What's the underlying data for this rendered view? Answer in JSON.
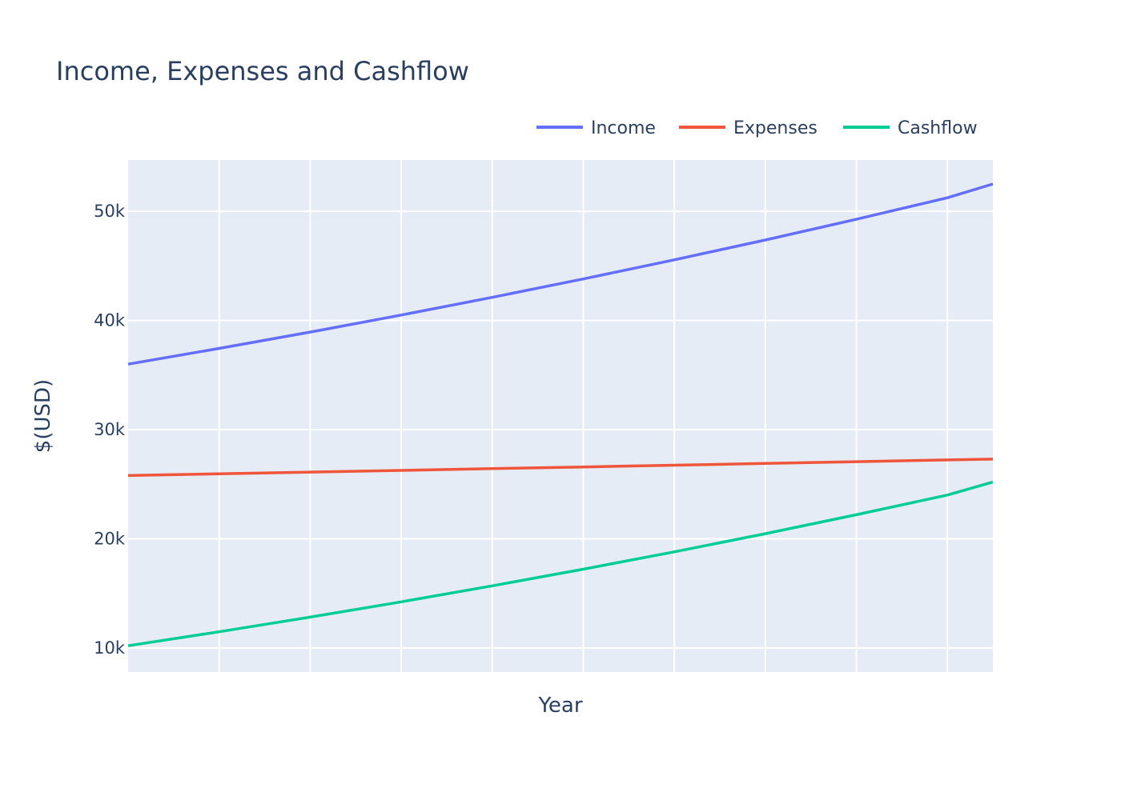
{
  "chart_data": {
    "type": "line",
    "title": "Income, Expenses and Cashflow",
    "xlabel": "Year",
    "ylabel": "$(USD)",
    "x": [
      0,
      1,
      2,
      3,
      4,
      5,
      6,
      7,
      8,
      9
    ],
    "xlim": [
      0,
      9.5
    ],
    "ylim": [
      7800,
      54700
    ],
    "y_ticks": [
      10000,
      20000,
      30000,
      40000,
      50000
    ],
    "y_tick_labels": [
      "10k",
      "20k",
      "30k",
      "40k",
      "50k"
    ],
    "x_gridlines": [
      1,
      2,
      3,
      4,
      5,
      6,
      7,
      8,
      9
    ],
    "x_tick_labels_shown": false,
    "grid": true,
    "legend_position": "top-right",
    "legend_orientation": "horizontal",
    "plot_background": "#e5ecf6",
    "grid_color": "#ffffff",
    "text_color": "#2a3f5f",
    "series": [
      {
        "name": "Income",
        "color": "#636efa",
        "values": [
          36000,
          37440,
          38938,
          40495,
          42115,
          43800,
          45552,
          47374,
          49269,
          51240
        ]
      },
      {
        "name": "Expenses",
        "color": "#ef553b",
        "values": [
          25800,
          25955,
          26110,
          26267,
          26425,
          26583,
          26743,
          26903,
          27065,
          27227
        ]
      },
      {
        "name": "Cashflow",
        "color": "#00cc96",
        "values": [
          10200,
          11485,
          12828,
          14228,
          15690,
          17217,
          18809,
          20471,
          22204,
          24013
        ]
      }
    ],
    "series_end_values": [
      52500,
      27300,
      25200
    ]
  }
}
